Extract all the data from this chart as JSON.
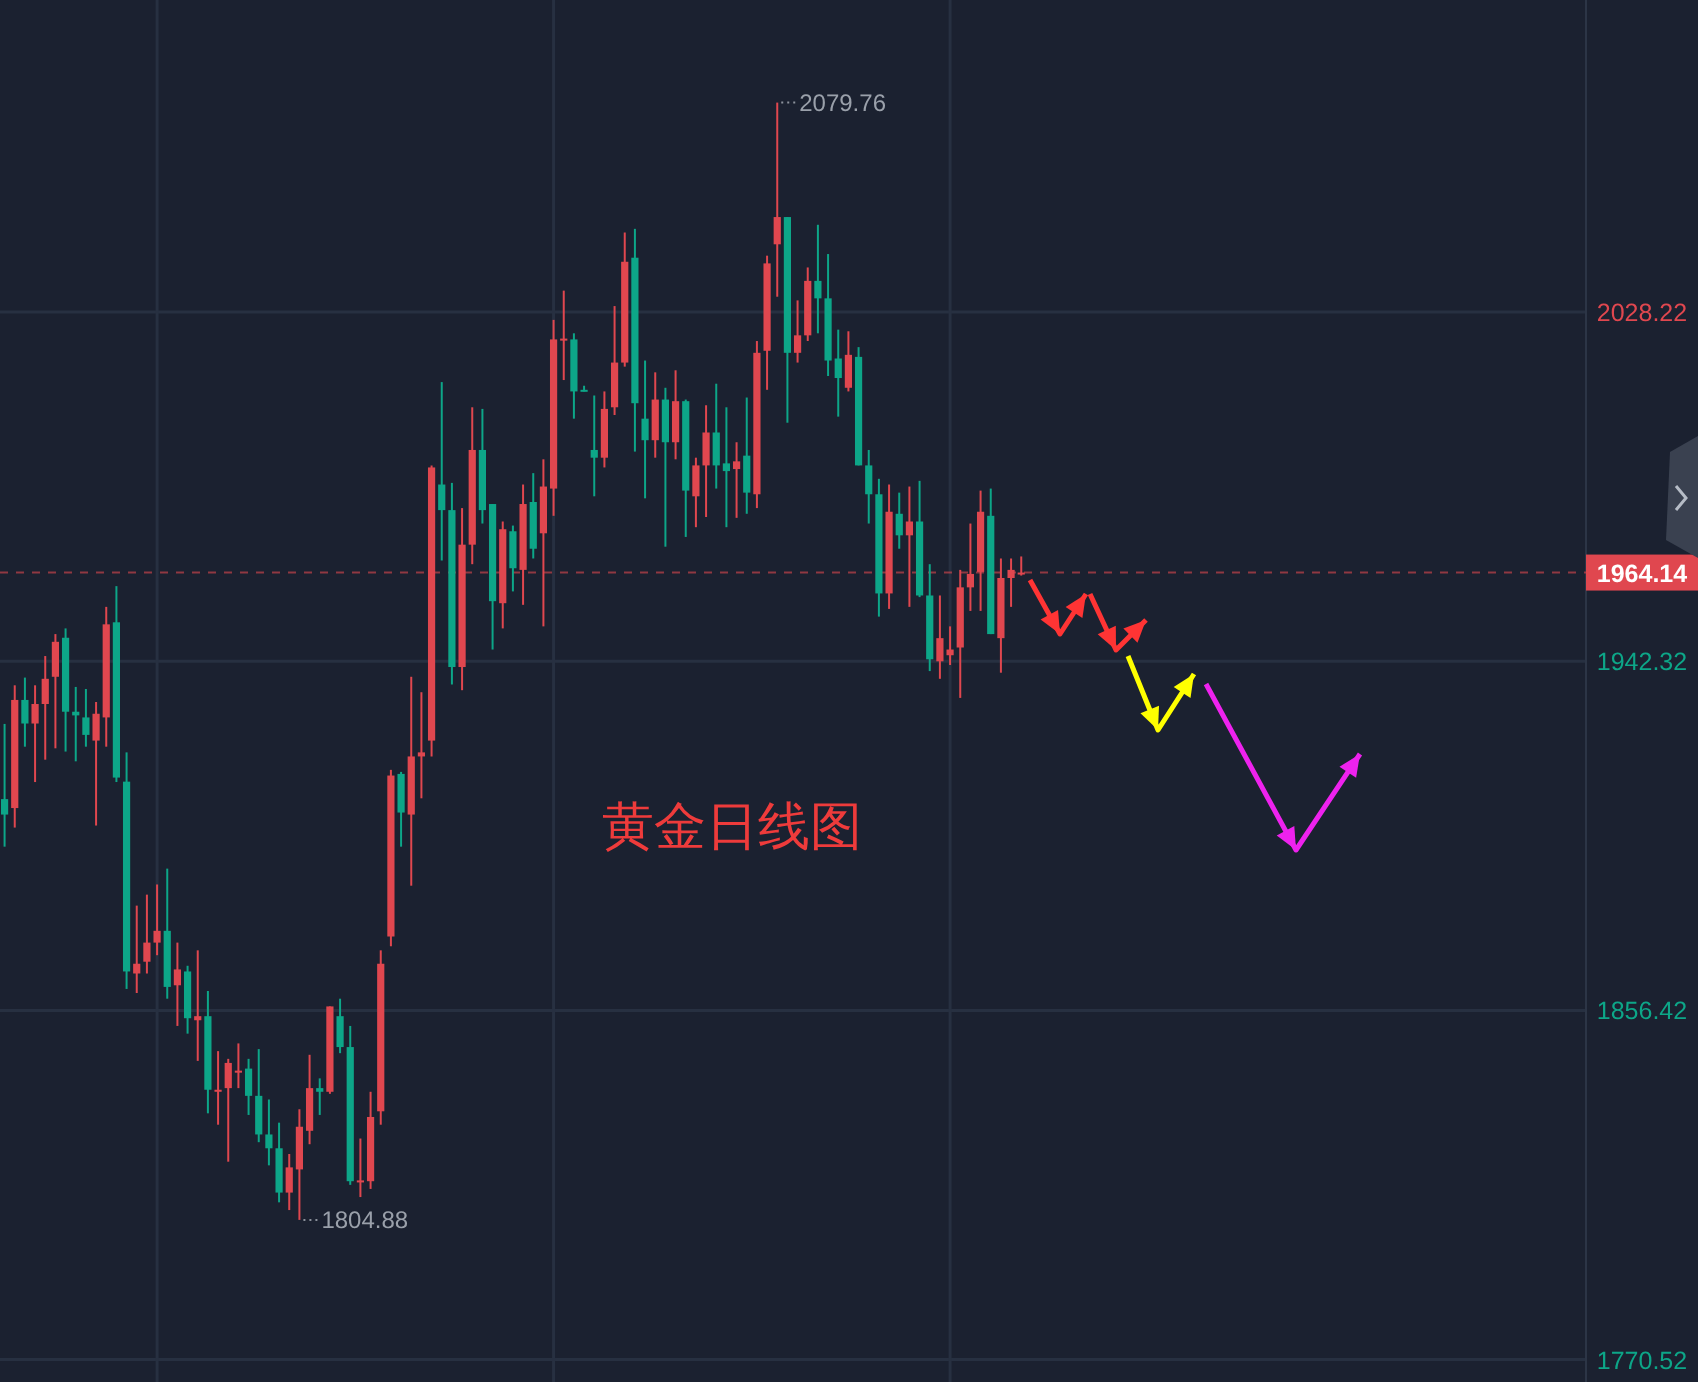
{
  "chart_data": {
    "type": "candlestick",
    "categories": [
      null,
      null,
      null,
      null,
      null,
      null,
      null,
      null,
      null,
      null,
      null,
      null,
      null,
      null,
      null,
      null,
      null,
      null,
      null,
      null,
      null,
      null,
      null,
      null,
      null,
      null,
      null,
      null,
      null,
      null,
      null,
      null,
      null,
      null,
      null,
      null,
      null,
      null,
      null,
      null,
      null,
      null,
      null,
      null,
      null,
      null,
      null,
      null,
      null,
      null,
      null,
      null,
      null,
      null,
      null,
      null,
      null,
      null,
      null,
      null,
      null,
      null,
      null,
      null,
      null,
      null,
      null,
      null,
      null,
      null,
      null,
      null,
      null,
      null,
      null,
      null,
      null,
      null,
      null,
      null,
      null,
      null,
      null,
      null,
      null,
      null,
      null,
      null,
      null,
      null,
      null,
      null,
      null,
      null,
      null,
      null,
      null,
      null,
      null,
      null,
      null,
      null,
      null,
      null,
      null,
      null,
      null,
      null,
      null,
      null,
      null,
      null,
      null,
      null,
      null,
      null,
      null,
      null,
      null,
      null,
      null,
      null,
      null,
      null,
      null,
      null,
      null,
      null,
      null,
      null,
      null,
      null,
      null,
      null,
      null,
      null,
      null,
      null,
      null,
      null,
      null,
      null,
      null,
      null,
      null,
      null,
      null,
      null,
      null,
      null,
      null,
      null,
      null,
      null,
      null,
      null
    ],
    "ohlc": [
      [
        1908.4,
        1926.9,
        1896.7,
        1904.6
      ],
      [
        1906.2,
        1936.4,
        1901.4,
        1932.8
      ],
      [
        1932.8,
        1938.3,
        1921.3,
        1927.0
      ],
      [
        1927.0,
        1936.4,
        1912.6,
        1931.8
      ],
      [
        1931.8,
        1943.6,
        1918.1,
        1938.0
      ],
      [
        1938.5,
        1949.0,
        1920.9,
        1947.1
      ],
      [
        1948.1,
        1950.4,
        1920.1,
        1929.9
      ],
      [
        1929.9,
        1936.0,
        1917.7,
        1929.0
      ],
      [
        1928.5,
        1935.5,
        1921.3,
        1924.2
      ],
      [
        1922.8,
        1932.3,
        1901.9,
        1929.4
      ],
      [
        1928.5,
        1955.7,
        1921.3,
        1951.4
      ],
      [
        1951.9,
        1960.8,
        1912.6,
        1913.7
      ],
      [
        1912.7,
        1919.9,
        1861.7,
        1866.0
      ],
      [
        1865.5,
        1882.2,
        1860.7,
        1867.9
      ],
      [
        1868.4,
        1884.9,
        1865.5,
        1873.1
      ],
      [
        1873.1,
        1887.4,
        1870.0,
        1876.0
      ],
      [
        1876.0,
        1891.3,
        1859.3,
        1862.2
      ],
      [
        1862.6,
        1873.1,
        1852.6,
        1866.5
      ],
      [
        1866.0,
        1867.4,
        1850.7,
        1854.5
      ],
      [
        1854.0,
        1871.2,
        1844.0,
        1855.0
      ],
      [
        1855.0,
        1861.2,
        1831.1,
        1836.9
      ],
      [
        1836.4,
        1846.4,
        1828.3,
        1836.9
      ],
      [
        1837.3,
        1844.5,
        1819.2,
        1843.5
      ],
      [
        1841.1,
        1848.3,
        1837.3,
        1841.6
      ],
      [
        1842.1,
        1844.5,
        1830.7,
        1835.4
      ],
      [
        1835.4,
        1846.9,
        1824.0,
        1825.9
      ],
      [
        1825.9,
        1834.5,
        1818.3,
        1822.5
      ],
      [
        1822.5,
        1828.8,
        1809.2,
        1811.6
      ],
      [
        1811.6,
        1821.1,
        1807.3,
        1817.8
      ],
      [
        1817.3,
        1832.1,
        1804.88,
        1827.8
      ],
      [
        1826.8,
        1845.5,
        1823.5,
        1837.3
      ],
      [
        1837.3,
        1839.7,
        1830.7,
        1836.4
      ],
      [
        1836.4,
        1857.4,
        1835.9,
        1857.4
      ],
      [
        1855.0,
        1859.3,
        1845.9,
        1847.4
      ],
      [
        1847.4,
        1852.6,
        1813.5,
        1814.4
      ],
      [
        1814.1,
        1824.9,
        1810.5,
        1814.6
      ],
      [
        1814.4,
        1836.4,
        1812.5,
        1830.2
      ],
      [
        1831.6,
        1871.2,
        1828.3,
        1867.9
      ],
      [
        1874.6,
        1915.6,
        1872.2,
        1914.2
      ],
      [
        1914.6,
        1915.1,
        1896.7,
        1905.1
      ],
      [
        1904.6,
        1938.5,
        1887.1,
        1918.9
      ],
      [
        1918.9,
        1934.7,
        1908.6,
        1919.9
      ],
      [
        1922.8,
        1990.5,
        1918.9,
        1990.0
      ],
      [
        1985.8,
        2011.0,
        1967.1,
        1979.5
      ],
      [
        1979.5,
        1986.2,
        1936.6,
        1940.9
      ],
      [
        1940.9,
        1980.0,
        1935.2,
        1971.0
      ],
      [
        1971.0,
        2004.8,
        1966.2,
        1994.3
      ],
      [
        1994.3,
        2004.4,
        1976.2,
        1979.5
      ],
      [
        1981.0,
        1981.0,
        1945.2,
        1957.1
      ],
      [
        1956.6,
        1976.7,
        1950.4,
        1974.8
      ],
      [
        1974.3,
        1975.7,
        1959.5,
        1965.2
      ],
      [
        1964.8,
        1985.8,
        1956.2,
        1981.0
      ],
      [
        1981.5,
        1988.6,
        1967.6,
        1970.0
      ],
      [
        1973.8,
        1992.0,
        1950.9,
        1985.3
      ],
      [
        1984.8,
        2026.3,
        1978.1,
        2021.5
      ],
      [
        2021.2,
        2033.5,
        2011.5,
        2021.7
      ],
      [
        2021.5,
        2023.0,
        2002.0,
        2008.7
      ],
      [
        2009.1,
        2010.1,
        2008.7,
        2009.0
      ],
      [
        1994.3,
        2007.7,
        1982.9,
        1992.4
      ],
      [
        1992.4,
        2008.7,
        1990.0,
        2004.4
      ],
      [
        2004.8,
        2029.7,
        2002.9,
        2015.8
      ],
      [
        2015.8,
        2047.8,
        2014.8,
        2040.6
      ],
      [
        2041.6,
        2048.7,
        1993.9,
        2005.8
      ],
      [
        2002.0,
        2016.3,
        1982.4,
        1996.7
      ],
      [
        1996.7,
        2013.4,
        1992.4,
        2006.7
      ],
      [
        2006.7,
        2009.6,
        1970.5,
        1996.2
      ],
      [
        1996.2,
        2013.9,
        1992.0,
        2006.3
      ],
      [
        2006.3,
        2006.7,
        1972.9,
        1984.3
      ],
      [
        1982.9,
        1992.4,
        1975.3,
        1990.5
      ],
      [
        1990.5,
        2005.3,
        1977.8,
        1998.6
      ],
      [
        1998.6,
        2010.6,
        1984.8,
        1990.5
      ],
      [
        1991.0,
        2004.8,
        1975.3,
        1989.1
      ],
      [
        1989.6,
        1996.2,
        1977.6,
        1991.5
      ],
      [
        1992.9,
        2007.2,
        1978.6,
        1983.8
      ],
      [
        1983.4,
        2021.1,
        1980.0,
        2018.2
      ],
      [
        2018.7,
        2042.1,
        2009.1,
        2040.2
      ],
      [
        2044.9,
        2079.76,
        2032.0,
        2051.6
      ],
      [
        2051.6,
        2051.6,
        2001.0,
        2018.2
      ],
      [
        2018.2,
        2031.1,
        2015.8,
        2022.5
      ],
      [
        2022.5,
        2039.2,
        2021.1,
        2035.9
      ],
      [
        2035.9,
        2049.7,
        2023.0,
        2031.6
      ],
      [
        2031.6,
        2042.5,
        2012.5,
        2016.3
      ],
      [
        2016.8,
        2023.9,
        2002.5,
        2012.0
      ],
      [
        2009.6,
        2023.5,
        2008.7,
        2017.7
      ],
      [
        2017.2,
        2019.6,
        1990.5,
        1990.5
      ],
      [
        1990.5,
        1994.3,
        1976.2,
        1983.4
      ],
      [
        1983.4,
        1987.2,
        1953.3,
        1959.0
      ],
      [
        1959.0,
        1985.8,
        1955.2,
        1979.1
      ],
      [
        1978.6,
        1983.8,
        1970.0,
        1973.3
      ],
      [
        1973.3,
        1985.3,
        1955.7,
        1976.7
      ],
      [
        1976.7,
        1986.7,
        1958.1,
        1958.5
      ],
      [
        1958.5,
        1966.2,
        1939.9,
        1942.8
      ],
      [
        1942.3,
        1958.5,
        1938.0,
        1948.0
      ],
      [
        1943.8,
        1950.9,
        1941.4,
        1945.2
      ],
      [
        1945.7,
        1964.8,
        1933.3,
        1960.5
      ],
      [
        1960.5,
        1976.2,
        1954.7,
        1963.8
      ],
      [
        1964.3,
        1984.3,
        1954.7,
        1979.1
      ],
      [
        1978.1,
        1984.8,
        1949.0,
        1949.0
      ],
      [
        1948.0,
        1967.6,
        1939.5,
        1962.8
      ],
      [
        1962.8,
        1967.6,
        1955.7,
        1964.8
      ],
      [
        1963.9,
        1968.1,
        1963.4,
        1964.14
      ],
      null,
      null,
      null,
      null,
      null,
      null,
      null,
      null,
      null,
      null,
      null,
      null,
      null,
      null,
      null,
      null,
      null,
      null,
      null,
      null,
      null,
      null,
      null,
      null,
      null,
      null,
      null,
      null,
      null,
      null,
      null,
      null,
      null,
      null,
      null,
      null,
      null,
      null,
      null,
      null,
      null,
      null,
      null,
      null,
      null,
      null,
      null,
      null,
      null,
      null,
      null,
      null,
      null,
      null,
      null
    ],
    "colors": [
      "#0da688",
      "#e0474f",
      "#0da688",
      "#e0474f",
      "#e0474f",
      "#e0474f",
      "#0da688",
      "#0da688",
      "#0da688",
      "#e0474f",
      "#e0474f",
      "#0da688",
      "#0da688",
      "#e0474f",
      "#e0474f",
      "#e0474f",
      "#0da688",
      "#e0474f",
      "#0da688",
      "#e0474f",
      "#0da688",
      "#e0474f",
      "#e0474f",
      "#e0474f",
      "#0da688",
      "#0da688",
      "#0da688",
      "#0da688",
      "#e0474f",
      "#e0474f",
      "#e0474f",
      "#0da688",
      "#e0474f",
      "#0da688",
      "#0da688",
      "#e0474f",
      "#e0474f",
      "#e0474f",
      "#e0474f",
      "#0da688",
      "#e0474f",
      "#e0474f",
      "#e0474f",
      "#0da688",
      "#0da688",
      "#e0474f",
      "#e0474f",
      "#0da688",
      "#0da688",
      "#e0474f",
      "#0da688",
      "#e0474f",
      "#0da688",
      "#e0474f",
      "#e0474f",
      "#e0474f",
      "#0da688",
      "#0da688",
      "#0da688",
      "#e0474f",
      "#e0474f",
      "#e0474f",
      "#0da688",
      "#0da688",
      "#e0474f",
      "#0da688",
      "#e0474f",
      "#0da688",
      "#e0474f",
      "#e0474f",
      "#0da688",
      "#0da688",
      "#e0474f",
      "#0da688",
      "#e0474f",
      "#e0474f",
      "#e0474f",
      "#0da688",
      "#e0474f",
      "#e0474f",
      "#0da688",
      "#0da688",
      "#0da688",
      "#e0474f",
      "#0da688",
      "#0da688",
      "#0da688",
      "#e0474f",
      "#0da688",
      "#e0474f",
      "#0da688",
      "#0da688",
      "#e0474f",
      "#e0474f",
      "#e0474f",
      "#e0474f",
      "#e0474f",
      "#0da688",
      "#e0474f",
      "#e0474f",
      "#e0474f",
      null,
      null,
      null,
      null,
      null,
      null,
      null,
      null,
      null,
      null,
      null,
      null,
      null,
      null,
      null,
      null,
      null,
      null,
      null,
      null,
      null,
      null,
      null,
      null,
      null,
      null,
      null,
      null,
      null,
      null,
      null,
      null,
      null,
      null,
      null,
      null,
      null,
      null,
      null,
      null,
      null,
      null,
      null,
      null,
      null,
      null,
      null,
      null,
      null,
      null,
      null,
      null,
      null,
      null,
      null
    ],
    "ylim": [
      1765,
      2105
    ],
    "yticks": [
      2028.22,
      1942.32,
      1856.42,
      1770.52
    ],
    "grid": true,
    "ref_lines": [
      {
        "axis": "y",
        "value": 1964.14,
        "label": "1964.14",
        "color": "#e0474f",
        "line_style": "dashed"
      }
    ],
    "annotations": [
      "2079.76",
      "1804.88",
      "黄金日线图"
    ]
  }
}
